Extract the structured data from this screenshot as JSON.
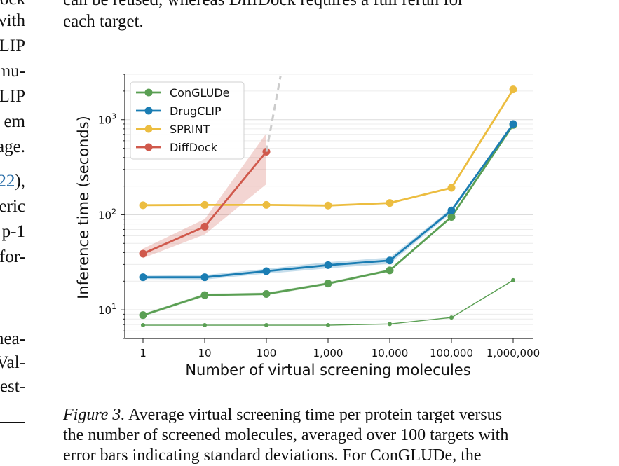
{
  "text_top": {
    "line1": "can be reused, whereas DiffDock requires a full rerun for",
    "line2": "each target."
  },
  "left_fragments": [
    "ock",
    "with",
    "LIP",
    "mu-",
    "LIP",
    "em",
    "age.",
    "22",
    "),",
    "eric",
    "p-1",
    "for-",
    "nea-",
    "Val-",
    "est-"
  ],
  "caption": {
    "label": "Figure 3.",
    "line1": "Average virtual screening time per protein target versus",
    "line2": "the number of screened molecules, averaged over 100 targets with",
    "line3": "error bars indicating standard deviations. For ConGLUDe, the"
  },
  "chart_data": {
    "type": "line",
    "xscale": "log",
    "yscale": "log",
    "x": [
      1,
      10,
      100,
      1000,
      10000,
      100000,
      1000000
    ],
    "x_tick_labels": [
      "1",
      "10",
      "100",
      "1,000",
      "10,000",
      "100,000",
      "1,000,000"
    ],
    "xlabel": "Number of virtual screening molecules",
    "ylabel": "Inference time (seconds)",
    "y_tick_labels": [
      {
        "base": "10",
        "exp": "1",
        "value": 10
      },
      {
        "base": "10",
        "exp": "2",
        "value": 100
      },
      {
        "base": "10",
        "exp": "3",
        "value": 1000
      }
    ],
    "ylim": [
      5,
      3000
    ],
    "grid": "horizontal",
    "legend_position": "top-left",
    "series": [
      {
        "name": "ConGLUDe",
        "color": "#5a9f53",
        "x": [
          1,
          10,
          100,
          1000,
          10000,
          100000,
          1000000
        ],
        "values": [
          8.8,
          14.3,
          14.7,
          18.9,
          26,
          95,
          880
        ],
        "band": [
          0.3,
          0.5,
          0.5,
          0.6,
          0.8,
          3,
          20
        ]
      },
      {
        "name": "",
        "color": "#5a9f53",
        "thin": true,
        "x": [
          1,
          10,
          100,
          1000,
          10000,
          100000,
          1000000
        ],
        "values": [
          6.9,
          6.9,
          6.9,
          6.9,
          7.1,
          8.3,
          20.5
        ],
        "band": [
          0,
          0,
          0,
          0,
          0,
          0,
          0
        ]
      },
      {
        "name": "DrugCLIP",
        "color": "#1a7db3",
        "x": [
          1,
          10,
          100,
          1000,
          10000,
          100000,
          1000000
        ],
        "values": [
          22,
          22,
          25.5,
          29.5,
          33,
          111,
          900
        ],
        "band": [
          0.9,
          1.2,
          1.5,
          2.2,
          2.5,
          6,
          30
        ]
      },
      {
        "name": "SPRINT",
        "color": "#ecbd40",
        "x": [
          1,
          10,
          100,
          1000,
          10000,
          100000,
          1000000
        ],
        "values": [
          126,
          127,
          127,
          125,
          133,
          192,
          2080
        ],
        "band": [
          2,
          2,
          2,
          2,
          3,
          5,
          40
        ]
      },
      {
        "name": "DiffDock",
        "color": "#d0594c",
        "x": [
          1,
          10,
          100
        ],
        "values": [
          39,
          75,
          460
        ],
        "band_lower": [
          35,
          62,
          210
        ],
        "band_upper": [
          44,
          90,
          720
        ]
      },
      {
        "name": "",
        "color": "#cccccc",
        "dashed": true,
        "extrapolation": true,
        "x": [
          100,
          170
        ],
        "values": [
          460,
          2900
        ]
      }
    ]
  }
}
